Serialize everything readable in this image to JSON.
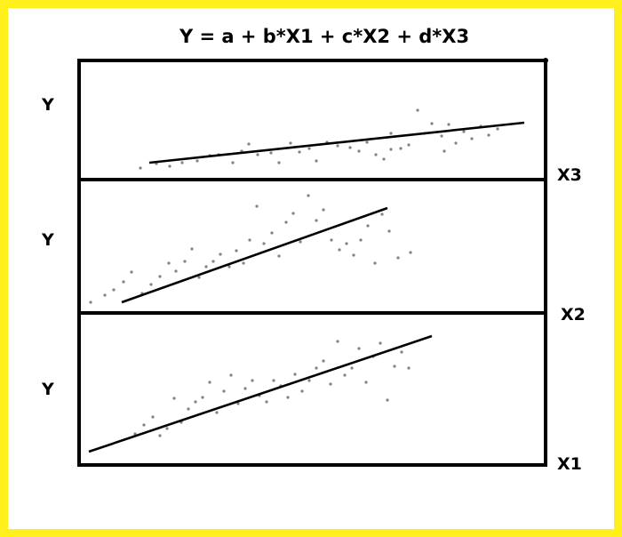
{
  "equation": "Y = a + b*X1 + c*X2 + d*X3",
  "colors": {
    "border": "#ffef1a",
    "ink": "#000000",
    "points": "#8a7d86"
  },
  "panels": [
    {
      "id": "x3",
      "y_label": "Y",
      "x_label": "X3",
      "points": [
        [
          158,
          189
        ],
        [
          176,
          184
        ],
        [
          191,
          187
        ],
        [
          205,
          183
        ],
        [
          222,
          181
        ],
        [
          236,
          175
        ],
        [
          246,
          174
        ],
        [
          262,
          183
        ],
        [
          272,
          170
        ],
        [
          280,
          162
        ],
        [
          290,
          174
        ],
        [
          305,
          172
        ],
        [
          314,
          183
        ],
        [
          327,
          161
        ],
        [
          337,
          171
        ],
        [
          348,
          167
        ],
        [
          356,
          181
        ],
        [
          368,
          160
        ],
        [
          380,
          164
        ],
        [
          394,
          166
        ],
        [
          404,
          170
        ],
        [
          413,
          160
        ],
        [
          423,
          174
        ],
        [
          432,
          179
        ],
        [
          440,
          168
        ],
        [
          451,
          167
        ],
        [
          460,
          163
        ],
        [
          470,
          124
        ],
        [
          478,
          150
        ],
        [
          486,
          139
        ],
        [
          497,
          153
        ],
        [
          505,
          140
        ],
        [
          513,
          161
        ],
        [
          522,
          148
        ],
        [
          531,
          156
        ],
        [
          541,
          142
        ],
        [
          550,
          152
        ],
        [
          560,
          145
        ],
        [
          440,
          150
        ],
        [
          500,
          170
        ]
      ],
      "line": [
        [
          168,
          183
        ],
        [
          590,
          138
        ]
      ]
    },
    {
      "id": "x2",
      "y_label": "Y",
      "x_label": "X2",
      "points": [
        [
          102,
          340
        ],
        [
          118,
          332
        ],
        [
          128,
          326
        ],
        [
          139,
          317
        ],
        [
          148,
          306
        ],
        [
          160,
          330
        ],
        [
          170,
          320
        ],
        [
          180,
          311
        ],
        [
          190,
          296
        ],
        [
          198,
          305
        ],
        [
          208,
          294
        ],
        [
          216,
          280
        ],
        [
          224,
          312
        ],
        [
          232,
          300
        ],
        [
          240,
          294
        ],
        [
          248,
          286
        ],
        [
          258,
          300
        ],
        [
          266,
          282
        ],
        [
          274,
          296
        ],
        [
          281,
          270
        ],
        [
          289,
          232
        ],
        [
          297,
          274
        ],
        [
          306,
          262
        ],
        [
          314,
          288
        ],
        [
          322,
          250
        ],
        [
          330,
          240
        ],
        [
          338,
          272
        ],
        [
          347,
          220
        ],
        [
          356,
          248
        ],
        [
          364,
          236
        ],
        [
          373,
          270
        ],
        [
          382,
          281
        ],
        [
          390,
          274
        ],
        [
          398,
          287
        ],
        [
          406,
          270
        ],
        [
          414,
          254
        ],
        [
          422,
          296
        ],
        [
          430,
          241
        ],
        [
          438,
          260
        ],
        [
          448,
          290
        ],
        [
          462,
          284
        ]
      ],
      "line": [
        [
          137,
          340
        ],
        [
          436,
          234
        ]
      ]
    },
    {
      "id": "x1",
      "y_label": "Y",
      "x_label": "X1",
      "points": [
        [
          152,
          488
        ],
        [
          162,
          478
        ],
        [
          172,
          469
        ],
        [
          180,
          490
        ],
        [
          188,
          482
        ],
        [
          196,
          448
        ],
        [
          204,
          475
        ],
        [
          212,
          460
        ],
        [
          220,
          452
        ],
        [
          228,
          447
        ],
        [
          236,
          430
        ],
        [
          244,
          464
        ],
        [
          252,
          440
        ],
        [
          260,
          422
        ],
        [
          268,
          454
        ],
        [
          276,
          437
        ],
        [
          284,
          428
        ],
        [
          292,
          445
        ],
        [
          300,
          452
        ],
        [
          308,
          428
        ],
        [
          316,
          434
        ],
        [
          324,
          447
        ],
        [
          332,
          421
        ],
        [
          340,
          440
        ],
        [
          348,
          428
        ],
        [
          356,
          414
        ],
        [
          364,
          406
        ],
        [
          372,
          432
        ],
        [
          380,
          384
        ],
        [
          388,
          422
        ],
        [
          396,
          414
        ],
        [
          404,
          392
        ],
        [
          412,
          430
        ],
        [
          420,
          401
        ],
        [
          428,
          386
        ],
        [
          436,
          450
        ],
        [
          444,
          412
        ],
        [
          452,
          396
        ],
        [
          460,
          414
        ]
      ],
      "line": [
        [
          100,
          508
        ],
        [
          486,
          378
        ]
      ]
    }
  ]
}
